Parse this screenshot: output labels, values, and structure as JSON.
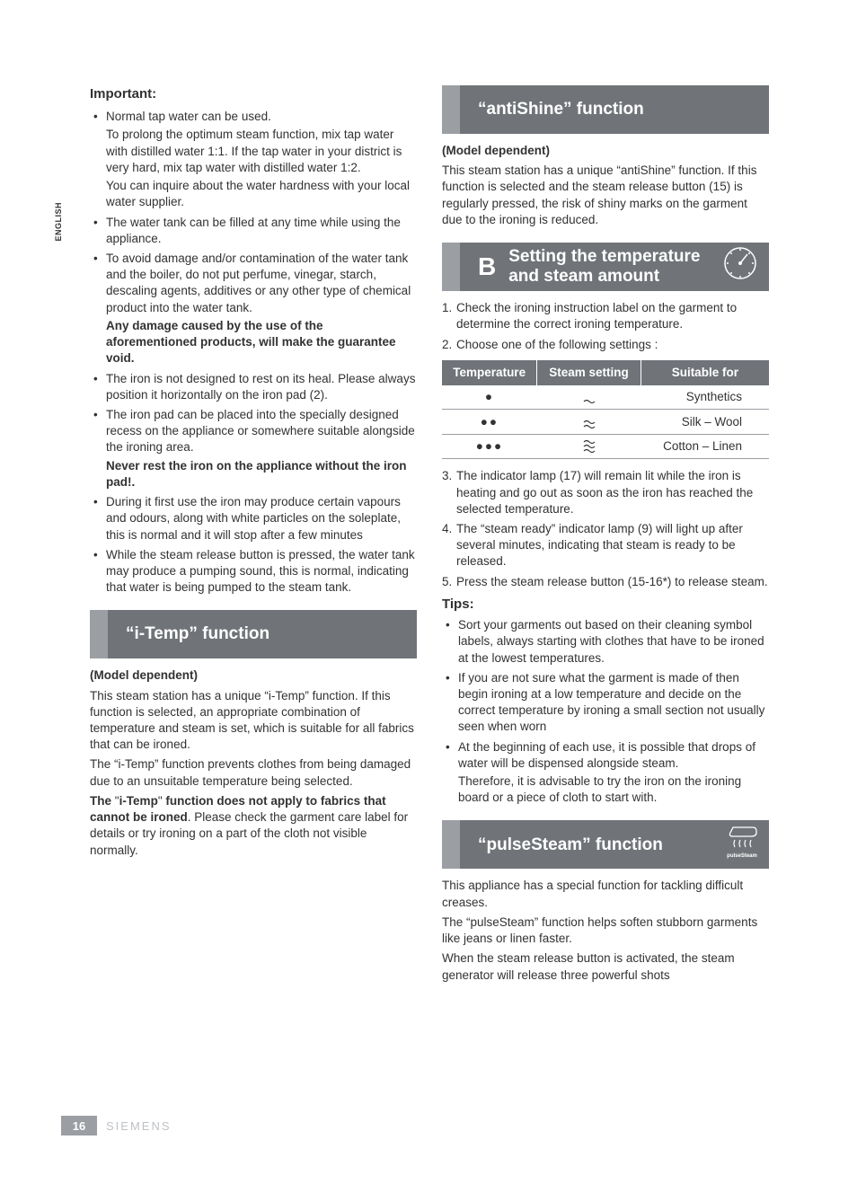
{
  "language_tab": "ENGLISH",
  "page_number": "16",
  "brand": "SIEMENS",
  "colors": {
    "bar_bg": "#707479",
    "accent_bg": "#9b9ea2",
    "text": "#323232",
    "footer_brand": "#bfc2c5"
  },
  "left": {
    "important_heading": "Important:",
    "bullets": [
      {
        "text": "Normal tap water can be used.",
        "subs": [
          "To prolong the optimum steam function, mix tap water with distilled water 1:1. If the tap water in your district is very hard, mix tap water with distilled water 1:2.",
          "You can inquire about the water hardness with your local water supplier."
        ]
      },
      {
        "text": "The water tank can be filled at any time while using the appliance."
      },
      {
        "text": "To avoid damage and/or contamination of the water tank and the boiler, do not put perfume, vinegar, starch, descaling agents, additives or any other type of chemical product into the water tank.",
        "bold_sub": "Any damage caused by the use of the aforementioned products, will make the guarantee void."
      },
      {
        "text": "The iron is not designed to rest on its heal. Please always position it horizontally on the iron pad (2)."
      },
      {
        "text": "The iron pad can be placed into the specially designed recess on the appliance or somewhere suitable alongside the ironing area.",
        "bold_sub": "Never rest the iron on the appliance without the iron pad!."
      },
      {
        "text": "During it first use the iron may produce certain vapours and odours, along with white particles on the soleplate, this is normal and it will stop after a few minutes"
      },
      {
        "text": "While the steam release button is pressed, the water tank may produce a pumping sound, this is normal, indicating that water is being pumped to the steam tank."
      }
    ],
    "itemp_title": "“i-Temp” function",
    "itemp_model_dep": "(Model dependent)",
    "itemp_p1": "This steam station has a unique “i-Temp” function. If this function is selected, an appropriate combination of temperature and steam is set, which is suitable for all fabrics that can be ironed.",
    "itemp_p2": "The “i-Temp” function prevents clothes from being damaged due to an unsuitable temperature being selected.",
    "itemp_p3_pre": "The ",
    "itemp_p3_bold": "“i-Temp” function does not apply to fabrics that cannot be ironed",
    "itemp_p3_post": ". Please check the garment care label for details or try ironing on a part of the cloth not visible normally."
  },
  "right": {
    "antishine_title": "“antiShine” function",
    "antishine_model_dep": "(Model dependent)",
    "antishine_p1": "This steam station has a unique “antiShine” function. If this function is selected and the steam release button (15) is regularly pressed, the risk of shiny marks on the garment due to the ironing is reduced.",
    "sectionB_letter": "B",
    "sectionB_title": "Setting the temperature and steam amount",
    "steps_pre": [
      "Check the ironing instruction label on the garment to determine the correct ironing temperature.",
      "Choose one of the following settings :"
    ],
    "table": {
      "headers": [
        "Temperature",
        "Steam setting",
        "Suitable for"
      ],
      "rows": [
        {
          "temp_dots": 1,
          "steam_level": 1,
          "suitable": "Synthetics"
        },
        {
          "temp_dots": 2,
          "steam_level": 2,
          "suitable": "Silk – Wool"
        },
        {
          "temp_dots": 3,
          "steam_level": 3,
          "suitable": "Cotton – Linen"
        }
      ]
    },
    "steps_post": [
      "The indicator lamp (17) will remain lit while the iron is heating and go out as soon as the iron has reached the selected temperature.",
      "The “steam ready” indicator lamp (9) will light up after several minutes, indicating that steam is ready to be released.",
      "Press the steam release button (15-16*) to release steam."
    ],
    "tips_heading": "Tips:",
    "tips": [
      {
        "text": "Sort your garments out based on their cleaning symbol labels, always starting with clothes that have to be ironed at the lowest temperatures."
      },
      {
        "text": "If you are not sure what the garment is made of then begin ironing at a low temperature and decide on the correct temperature by ironing a small section not usually seen when worn"
      },
      {
        "text": "At the beginning of each use, it is possible that drops of water will be dispensed alongside steam.",
        "sub": "Therefore, it is advisable to try the iron on the ironing board or a piece of cloth to start with."
      }
    ],
    "pulse_title": "“pulseSteam” function",
    "pulse_icon_caption": "pulseSteam",
    "pulse_p1": "This appliance has a special function for tackling difficult creases.",
    "pulse_p2": "The “pulseSteam” function helps soften stubborn garments like jeans or linen faster.",
    "pulse_p3": "When the steam release button is activated, the steam generator will release three powerful shots"
  }
}
